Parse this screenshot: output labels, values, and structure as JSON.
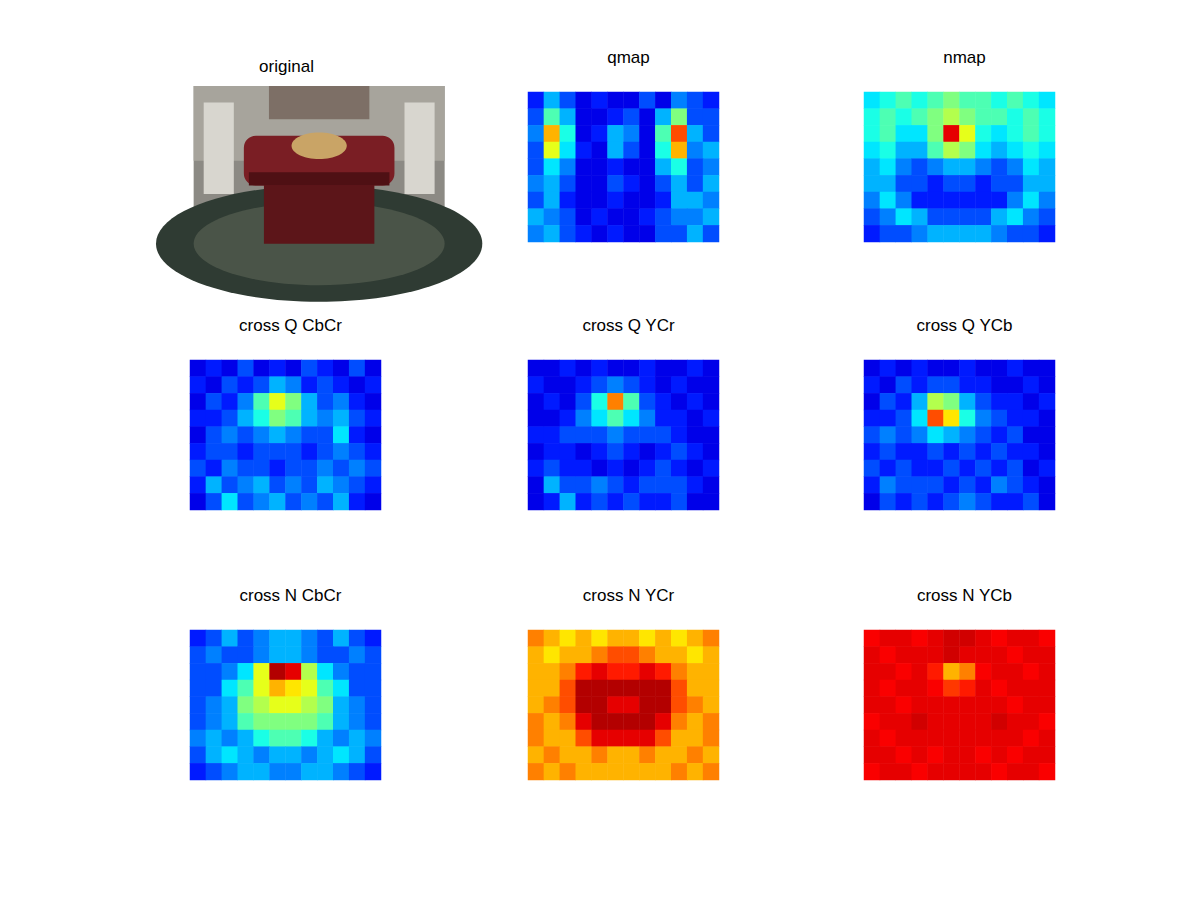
{
  "chart_data": [
    {
      "type": "image",
      "title": "original"
    },
    {
      "type": "heatmap",
      "title": "qmap",
      "zlim": [
        0,
        1
      ],
      "tick_labels": false,
      "cells": [
        [
          0.15,
          0.3,
          0.2,
          0.1,
          0.15,
          0.1,
          0.1,
          0.2,
          0.1,
          0.25,
          0.2,
          0.15
        ],
        [
          0.2,
          0.45,
          0.3,
          0.1,
          0.1,
          0.15,
          0.2,
          0.1,
          0.3,
          0.5,
          0.2,
          0.2
        ],
        [
          0.25,
          0.7,
          0.4,
          0.1,
          0.15,
          0.3,
          0.25,
          0.1,
          0.45,
          0.8,
          0.3,
          0.2
        ],
        [
          0.2,
          0.6,
          0.35,
          0.15,
          0.1,
          0.3,
          0.2,
          0.1,
          0.4,
          0.7,
          0.25,
          0.3
        ],
        [
          0.2,
          0.35,
          0.25,
          0.1,
          0.1,
          0.15,
          0.1,
          0.1,
          0.3,
          0.4,
          0.2,
          0.25
        ],
        [
          0.25,
          0.3,
          0.2,
          0.1,
          0.1,
          0.2,
          0.15,
          0.1,
          0.2,
          0.3,
          0.2,
          0.3
        ],
        [
          0.2,
          0.3,
          0.15,
          0.1,
          0.1,
          0.15,
          0.1,
          0.1,
          0.15,
          0.3,
          0.3,
          0.25
        ],
        [
          0.3,
          0.25,
          0.2,
          0.1,
          0.15,
          0.1,
          0.1,
          0.15,
          0.2,
          0.25,
          0.25,
          0.3
        ],
        [
          0.25,
          0.3,
          0.2,
          0.15,
          0.1,
          0.15,
          0.1,
          0.1,
          0.2,
          0.2,
          0.3,
          0.2
        ]
      ]
    },
    {
      "type": "heatmap",
      "title": "nmap",
      "zlim": [
        0,
        1
      ],
      "tick_labels": false,
      "cells": [
        [
          0.35,
          0.4,
          0.45,
          0.4,
          0.45,
          0.5,
          0.45,
          0.45,
          0.4,
          0.45,
          0.4,
          0.35
        ],
        [
          0.4,
          0.45,
          0.4,
          0.45,
          0.5,
          0.55,
          0.5,
          0.45,
          0.45,
          0.4,
          0.45,
          0.4
        ],
        [
          0.4,
          0.45,
          0.35,
          0.35,
          0.5,
          0.9,
          0.6,
          0.4,
          0.35,
          0.4,
          0.45,
          0.4
        ],
        [
          0.35,
          0.4,
          0.3,
          0.3,
          0.45,
          0.55,
          0.5,
          0.35,
          0.3,
          0.35,
          0.4,
          0.35
        ],
        [
          0.3,
          0.35,
          0.25,
          0.2,
          0.25,
          0.3,
          0.3,
          0.25,
          0.2,
          0.25,
          0.35,
          0.3
        ],
        [
          0.3,
          0.3,
          0.2,
          0.2,
          0.15,
          0.2,
          0.2,
          0.15,
          0.2,
          0.2,
          0.3,
          0.3
        ],
        [
          0.25,
          0.35,
          0.25,
          0.15,
          0.15,
          0.15,
          0.15,
          0.15,
          0.15,
          0.25,
          0.35,
          0.25
        ],
        [
          0.2,
          0.25,
          0.35,
          0.3,
          0.2,
          0.2,
          0.2,
          0.2,
          0.3,
          0.35,
          0.25,
          0.2
        ],
        [
          0.15,
          0.2,
          0.2,
          0.25,
          0.3,
          0.3,
          0.3,
          0.3,
          0.25,
          0.2,
          0.2,
          0.15
        ]
      ]
    },
    {
      "type": "heatmap",
      "title": "cross Q CbCr",
      "zlim": [
        0,
        1
      ],
      "tick_labels": false,
      "cells": [
        [
          0.1,
          0.15,
          0.1,
          0.2,
          0.1,
          0.15,
          0.1,
          0.2,
          0.15,
          0.1,
          0.2,
          0.1
        ],
        [
          0.15,
          0.1,
          0.2,
          0.15,
          0.2,
          0.3,
          0.25,
          0.15,
          0.2,
          0.15,
          0.1,
          0.15
        ],
        [
          0.1,
          0.2,
          0.15,
          0.25,
          0.45,
          0.6,
          0.5,
          0.3,
          0.2,
          0.25,
          0.15,
          0.1
        ],
        [
          0.15,
          0.15,
          0.2,
          0.3,
          0.4,
          0.5,
          0.45,
          0.3,
          0.25,
          0.3,
          0.2,
          0.15
        ],
        [
          0.1,
          0.2,
          0.25,
          0.2,
          0.25,
          0.3,
          0.25,
          0.2,
          0.2,
          0.35,
          0.15,
          0.1
        ],
        [
          0.15,
          0.2,
          0.2,
          0.15,
          0.2,
          0.2,
          0.2,
          0.15,
          0.2,
          0.25,
          0.2,
          0.15
        ],
        [
          0.2,
          0.15,
          0.25,
          0.2,
          0.2,
          0.15,
          0.2,
          0.2,
          0.25,
          0.2,
          0.25,
          0.2
        ],
        [
          0.15,
          0.3,
          0.2,
          0.25,
          0.3,
          0.2,
          0.25,
          0.2,
          0.3,
          0.25,
          0.2,
          0.15
        ],
        [
          0.1,
          0.2,
          0.35,
          0.2,
          0.25,
          0.3,
          0.2,
          0.25,
          0.2,
          0.3,
          0.15,
          0.1
        ]
      ]
    },
    {
      "type": "heatmap",
      "title": "cross Q YCr",
      "zlim": [
        0,
        1
      ],
      "tick_labels": false,
      "cells": [
        [
          0.1,
          0.1,
          0.15,
          0.1,
          0.15,
          0.1,
          0.1,
          0.15,
          0.1,
          0.1,
          0.15,
          0.1
        ],
        [
          0.15,
          0.1,
          0.1,
          0.15,
          0.2,
          0.25,
          0.2,
          0.15,
          0.1,
          0.15,
          0.1,
          0.1
        ],
        [
          0.1,
          0.15,
          0.1,
          0.2,
          0.4,
          0.75,
          0.45,
          0.2,
          0.15,
          0.1,
          0.15,
          0.1
        ],
        [
          0.1,
          0.1,
          0.15,
          0.25,
          0.35,
          0.45,
          0.35,
          0.25,
          0.15,
          0.15,
          0.1,
          0.15
        ],
        [
          0.15,
          0.15,
          0.2,
          0.2,
          0.2,
          0.25,
          0.2,
          0.2,
          0.2,
          0.15,
          0.1,
          0.1
        ],
        [
          0.1,
          0.15,
          0.15,
          0.1,
          0.15,
          0.2,
          0.15,
          0.1,
          0.15,
          0.2,
          0.15,
          0.1
        ],
        [
          0.15,
          0.2,
          0.15,
          0.15,
          0.1,
          0.15,
          0.1,
          0.15,
          0.2,
          0.15,
          0.1,
          0.15
        ],
        [
          0.1,
          0.3,
          0.2,
          0.2,
          0.25,
          0.2,
          0.15,
          0.2,
          0.2,
          0.2,
          0.15,
          0.1
        ],
        [
          0.1,
          0.15,
          0.3,
          0.15,
          0.2,
          0.15,
          0.2,
          0.15,
          0.15,
          0.2,
          0.1,
          0.1
        ]
      ]
    },
    {
      "type": "heatmap",
      "title": "cross Q YCb",
      "zlim": [
        0,
        1
      ],
      "tick_labels": false,
      "cells": [
        [
          0.1,
          0.15,
          0.1,
          0.15,
          0.1,
          0.1,
          0.15,
          0.1,
          0.1,
          0.15,
          0.1,
          0.1
        ],
        [
          0.15,
          0.1,
          0.2,
          0.15,
          0.2,
          0.2,
          0.15,
          0.15,
          0.1,
          0.1,
          0.15,
          0.1
        ],
        [
          0.1,
          0.2,
          0.15,
          0.3,
          0.55,
          0.5,
          0.3,
          0.2,
          0.15,
          0.15,
          0.1,
          0.15
        ],
        [
          0.15,
          0.15,
          0.2,
          0.35,
          0.8,
          0.65,
          0.4,
          0.25,
          0.2,
          0.15,
          0.15,
          0.1
        ],
        [
          0.2,
          0.25,
          0.2,
          0.25,
          0.35,
          0.3,
          0.25,
          0.2,
          0.15,
          0.2,
          0.1,
          0.1
        ],
        [
          0.15,
          0.2,
          0.15,
          0.15,
          0.2,
          0.15,
          0.2,
          0.15,
          0.2,
          0.15,
          0.15,
          0.1
        ],
        [
          0.2,
          0.15,
          0.2,
          0.15,
          0.15,
          0.2,
          0.15,
          0.2,
          0.15,
          0.2,
          0.1,
          0.15
        ],
        [
          0.15,
          0.25,
          0.2,
          0.2,
          0.2,
          0.15,
          0.2,
          0.15,
          0.25,
          0.2,
          0.15,
          0.1
        ],
        [
          0.1,
          0.2,
          0.15,
          0.2,
          0.15,
          0.2,
          0.25,
          0.2,
          0.15,
          0.15,
          0.2,
          0.1
        ]
      ]
    },
    {
      "type": "heatmap",
      "title": "cross N CbCr",
      "zlim": [
        0,
        1
      ],
      "tick_labels": false,
      "cells": [
        [
          0.15,
          0.2,
          0.3,
          0.2,
          0.25,
          0.3,
          0.3,
          0.25,
          0.2,
          0.3,
          0.2,
          0.15
        ],
        [
          0.2,
          0.25,
          0.2,
          0.2,
          0.25,
          0.3,
          0.3,
          0.25,
          0.2,
          0.2,
          0.25,
          0.2
        ],
        [
          0.2,
          0.2,
          0.25,
          0.35,
          0.6,
          0.95,
          0.9,
          0.55,
          0.35,
          0.25,
          0.2,
          0.2
        ],
        [
          0.2,
          0.2,
          0.35,
          0.45,
          0.6,
          0.7,
          0.65,
          0.6,
          0.45,
          0.35,
          0.2,
          0.2
        ],
        [
          0.2,
          0.25,
          0.3,
          0.5,
          0.55,
          0.6,
          0.6,
          0.55,
          0.5,
          0.3,
          0.25,
          0.2
        ],
        [
          0.2,
          0.25,
          0.3,
          0.45,
          0.5,
          0.5,
          0.5,
          0.5,
          0.45,
          0.3,
          0.25,
          0.2
        ],
        [
          0.25,
          0.3,
          0.25,
          0.3,
          0.4,
          0.45,
          0.45,
          0.4,
          0.3,
          0.25,
          0.3,
          0.25
        ],
        [
          0.2,
          0.3,
          0.35,
          0.3,
          0.25,
          0.3,
          0.3,
          0.25,
          0.3,
          0.35,
          0.3,
          0.2
        ],
        [
          0.15,
          0.2,
          0.25,
          0.3,
          0.3,
          0.25,
          0.25,
          0.3,
          0.3,
          0.25,
          0.2,
          0.15
        ]
      ]
    },
    {
      "type": "heatmap",
      "title": "cross N YCr",
      "zlim": [
        0,
        1
      ],
      "tick_labels": false,
      "cells": [
        [
          0.75,
          0.7,
          0.65,
          0.7,
          0.65,
          0.7,
          0.7,
          0.65,
          0.7,
          0.65,
          0.7,
          0.75
        ],
        [
          0.7,
          0.65,
          0.7,
          0.7,
          0.75,
          0.8,
          0.8,
          0.75,
          0.7,
          0.7,
          0.65,
          0.7
        ],
        [
          0.7,
          0.7,
          0.75,
          0.85,
          0.9,
          0.85,
          0.85,
          0.9,
          0.85,
          0.75,
          0.7,
          0.7
        ],
        [
          0.7,
          0.7,
          0.8,
          0.95,
          0.95,
          0.95,
          0.95,
          0.95,
          0.95,
          0.8,
          0.7,
          0.7
        ],
        [
          0.7,
          0.75,
          0.8,
          0.95,
          0.95,
          0.9,
          0.9,
          0.95,
          0.95,
          0.8,
          0.75,
          0.7
        ],
        [
          0.75,
          0.7,
          0.75,
          0.9,
          0.95,
          0.95,
          0.95,
          0.95,
          0.9,
          0.75,
          0.7,
          0.75
        ],
        [
          0.75,
          0.7,
          0.7,
          0.8,
          0.9,
          0.9,
          0.9,
          0.9,
          0.8,
          0.7,
          0.7,
          0.75
        ],
        [
          0.7,
          0.75,
          0.7,
          0.7,
          0.75,
          0.7,
          0.7,
          0.75,
          0.7,
          0.7,
          0.75,
          0.7
        ],
        [
          0.75,
          0.7,
          0.75,
          0.7,
          0.7,
          0.7,
          0.7,
          0.7,
          0.7,
          0.75,
          0.7,
          0.75
        ]
      ]
    },
    {
      "type": "heatmap",
      "title": "cross N YCb",
      "zlim": [
        0,
        1
      ],
      "tick_labels": false,
      "cells": [
        [
          0.88,
          0.9,
          0.9,
          0.88,
          0.9,
          0.92,
          0.92,
          0.9,
          0.88,
          0.9,
          0.9,
          0.88
        ],
        [
          0.9,
          0.88,
          0.9,
          0.9,
          0.9,
          0.92,
          0.9,
          0.9,
          0.9,
          0.88,
          0.9,
          0.9
        ],
        [
          0.9,
          0.9,
          0.88,
          0.9,
          0.85,
          0.7,
          0.75,
          0.88,
          0.9,
          0.9,
          0.88,
          0.9
        ],
        [
          0.9,
          0.88,
          0.9,
          0.9,
          0.88,
          0.82,
          0.85,
          0.9,
          0.88,
          0.9,
          0.9,
          0.9
        ],
        [
          0.9,
          0.9,
          0.88,
          0.9,
          0.9,
          0.9,
          0.9,
          0.9,
          0.9,
          0.88,
          0.9,
          0.9
        ],
        [
          0.88,
          0.9,
          0.9,
          0.92,
          0.9,
          0.9,
          0.9,
          0.9,
          0.92,
          0.9,
          0.9,
          0.88
        ],
        [
          0.9,
          0.88,
          0.9,
          0.9,
          0.9,
          0.9,
          0.9,
          0.9,
          0.9,
          0.9,
          0.88,
          0.9
        ],
        [
          0.9,
          0.9,
          0.88,
          0.9,
          0.88,
          0.9,
          0.9,
          0.88,
          0.9,
          0.88,
          0.9,
          0.9
        ],
        [
          0.88,
          0.9,
          0.9,
          0.88,
          0.9,
          0.9,
          0.9,
          0.9,
          0.88,
          0.9,
          0.9,
          0.88
        ]
      ]
    }
  ]
}
